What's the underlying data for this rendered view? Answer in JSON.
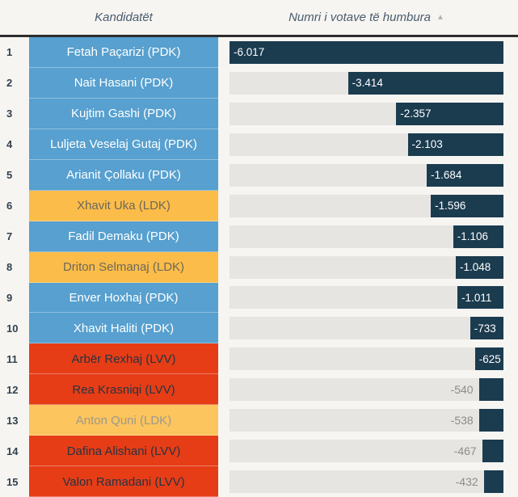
{
  "header": {
    "col_candidates": "Kandidatët",
    "col_votes": "Numri i votave të humbura",
    "sort_icon_glyph": "▲",
    "sort_state": "ascending"
  },
  "colors": {
    "background": "#f6f5f2",
    "header_rule": "#2d2d2d",
    "header_text": "#4a5b6b",
    "rank_text": "#32404e",
    "pdk": "#57a0cf",
    "ldk": "#fbbc49",
    "ldk_muted": "#fcc55e",
    "lvv": "#e63d17",
    "bar": "#1b3b4f",
    "track": "#e7e5e2",
    "outside_label": "#8c8c8c"
  },
  "chart_data": {
    "type": "bar",
    "orientation": "horizontal",
    "title": "Numri i votave të humbura",
    "xlabel": "Numri i votave të humbura",
    "ylabel": "Kandidatët",
    "axis_range": [
      -6017,
      0
    ],
    "max_abs_value": 6017,
    "grid": false,
    "legend": false,
    "rows": [
      {
        "rank": "1",
        "name": "Fetah Paçarizi (PDK)",
        "party": "PDK",
        "value": -6017,
        "label": "-6.017",
        "label_inside": true,
        "muted": false
      },
      {
        "rank": "2",
        "name": "Nait Hasani (PDK)",
        "party": "PDK",
        "value": -3414,
        "label": "-3.414",
        "label_inside": true,
        "muted": false
      },
      {
        "rank": "3",
        "name": "Kujtim Gashi (PDK)",
        "party": "PDK",
        "value": -2357,
        "label": "-2.357",
        "label_inside": true,
        "muted": false
      },
      {
        "rank": "4",
        "name": "Luljeta Veselaj Gutaj (PDK)",
        "party": "PDK",
        "value": -2103,
        "label": "-2.103",
        "label_inside": true,
        "muted": false
      },
      {
        "rank": "5",
        "name": "Arianit Çollaku (PDK)",
        "party": "PDK",
        "value": -1684,
        "label": "-1.684",
        "label_inside": true,
        "muted": false
      },
      {
        "rank": "6",
        "name": "Xhavit Uka (LDK)",
        "party": "LDK",
        "value": -1596,
        "label": "-1.596",
        "label_inside": true,
        "muted": false
      },
      {
        "rank": "7",
        "name": "Fadil Demaku (PDK)",
        "party": "PDK",
        "value": -1106,
        "label": "-1.106",
        "label_inside": true,
        "muted": false
      },
      {
        "rank": "8",
        "name": "Driton Selmanaj (LDK)",
        "party": "LDK",
        "value": -1048,
        "label": "-1.048",
        "label_inside": true,
        "muted": false
      },
      {
        "rank": "9",
        "name": "Enver Hoxhaj (PDK)",
        "party": "PDK",
        "value": -1011,
        "label": "-1.011",
        "label_inside": true,
        "muted": false
      },
      {
        "rank": "10",
        "name": "Xhavit Haliti (PDK)",
        "party": "PDK",
        "value": -733,
        "label": "-733",
        "label_inside": true,
        "muted": false
      },
      {
        "rank": "11",
        "name": "Arbër Rexhaj (LVV)",
        "party": "LVV",
        "value": -625,
        "label": "-625",
        "label_inside": true,
        "muted": false
      },
      {
        "rank": "12",
        "name": "Rea Krasniqi (LVV)",
        "party": "LVV",
        "value": -540,
        "label": "-540",
        "label_inside": false,
        "muted": false
      },
      {
        "rank": "13",
        "name": "Anton Quni (LDK)",
        "party": "LDK",
        "value": -538,
        "label": "-538",
        "label_inside": false,
        "muted": true
      },
      {
        "rank": "14",
        "name": "Dafina Alishani (LVV)",
        "party": "LVV",
        "value": -467,
        "label": "-467",
        "label_inside": false,
        "muted": false
      },
      {
        "rank": "15",
        "name": "Valon Ramadani (LVV)",
        "party": "LVV",
        "value": -432,
        "label": "-432",
        "label_inside": false,
        "muted": false
      }
    ]
  }
}
